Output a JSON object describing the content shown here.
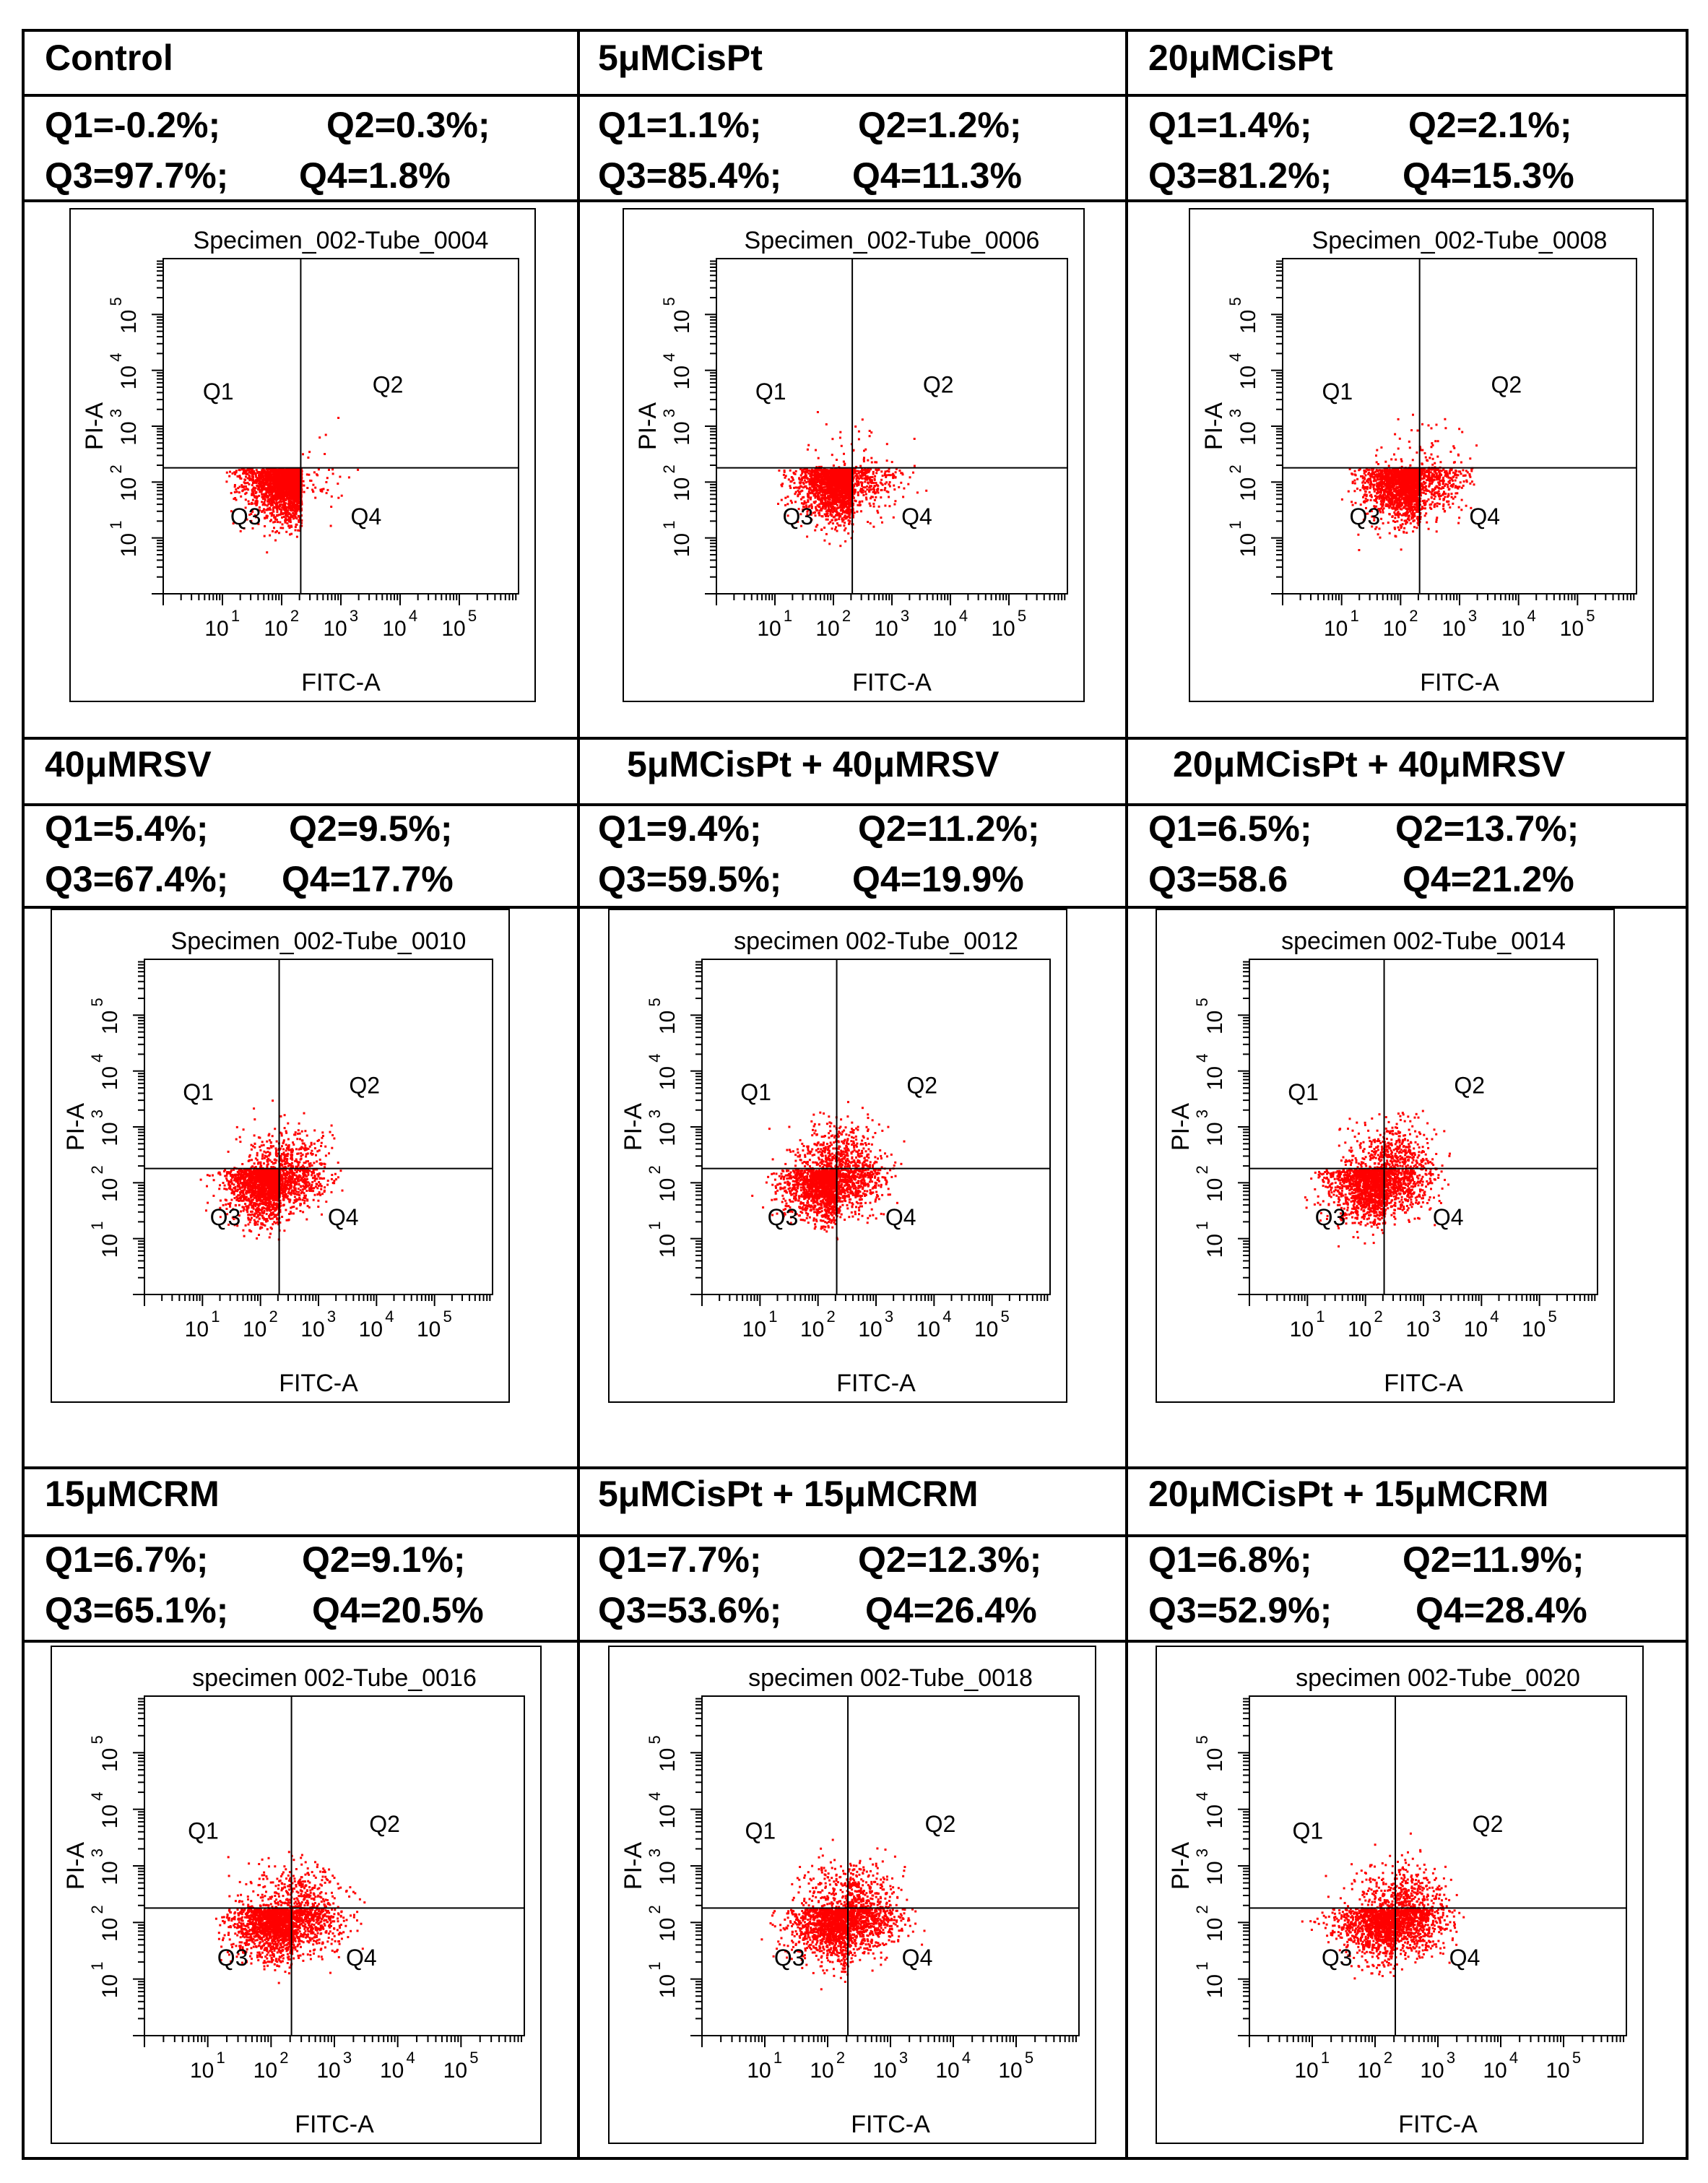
{
  "figure": {
    "point_color": "#ff0000",
    "panels": [
      {
        "label": "Control",
        "q1": "Q1=-0.2%;",
        "q2": "Q2=0.3%;",
        "q3": "Q3=97.7%;",
        "q4": "Q4=1.8%"
      },
      {
        "label": "5μMCisPt",
        "q1": "Q1=1.1%;",
        "q2": "Q2=1.2%;",
        "q3": "Q3=85.4%;",
        "q4": "Q4=11.3%"
      },
      {
        "label": "20μMCisPt",
        "q1": "Q1=1.4%;",
        "q2": "Q2=2.1%;",
        "q3": "Q3=81.2%;",
        "q4": "Q4=15.3%"
      },
      {
        "label": "40μMRSV",
        "q1": "Q1=5.4%;",
        "q2": "Q2=9.5%;",
        "q3": "Q3=67.4%;",
        "q4": "Q4=17.7%"
      },
      {
        "label": "5μMCisPt + 40μMRSV",
        "q1": "Q1=9.4%;",
        "q2": "Q2=11.2%;",
        "q3": "Q3=59.5%;",
        "q4": "Q4=19.9%"
      },
      {
        "label": "20μMCisPt + 40μMRSV",
        "q1": "Q1=6.5%;",
        "q2": "Q2=13.7%;",
        "q3": "Q3=58.6",
        "q4": "Q4=21.2%"
      },
      {
        "label": "15μMCRM",
        "q1": "Q1=6.7%;",
        "q2": "Q2=9.1%;",
        "q3": "Q3=65.1%;",
        "q4": "Q4=20.5%"
      },
      {
        "label": "5μMCisPt + 15μMCRM",
        "q1": "Q1=7.7%;",
        "q2": "Q2=12.3%;",
        "q3": "Q3=53.6%;",
        "q4": "Q4=26.4%"
      },
      {
        "label": "20μMCisPt + 15μMCRM",
        "q1": "Q1=6.8%;",
        "q2": "Q2=11.9%;",
        "q3": "Q3=52.9%;",
        "q4": "Q4=28.4%"
      }
    ]
  },
  "chart_data": [
    {
      "type": "scatter",
      "title": "Specimen_002-Tube_0004",
      "xlabel": "FITC-A",
      "ylabel": "PI-A",
      "x_scale": "log",
      "y_scale": "log",
      "xlim": [
        1,
        1000000
      ],
      "ylim": [
        1,
        1000000
      ],
      "x_ticks": [
        "10",
        "10",
        "10",
        "10",
        "10"
      ],
      "x_tick_exps": [
        "1",
        "2",
        "3",
        "4",
        "5"
      ],
      "y_ticks": [
        "10",
        "10",
        "10",
        "10",
        "10"
      ],
      "y_tick_exps": [
        "1",
        "2",
        "3",
        "4",
        "5"
      ],
      "gate": {
        "x": 210,
        "y": 180
      },
      "quadrant_labels": [
        "Q1",
        "Q2",
        "Q3",
        "Q4"
      ],
      "quadrant_percent": {
        "Q1": -0.2,
        "Q2": 0.3,
        "Q3": 97.7,
        "Q4": 1.8
      }
    },
    {
      "type": "scatter",
      "title": "Specimen_002-Tube_0006",
      "xlabel": "FITC-A",
      "ylabel": "PI-A",
      "x_scale": "log",
      "y_scale": "log",
      "xlim": [
        1,
        1000000
      ],
      "ylim": [
        1,
        1000000
      ],
      "x_ticks": [
        "10",
        "10",
        "10",
        "10",
        "10"
      ],
      "x_tick_exps": [
        "1",
        "2",
        "3",
        "4",
        "5"
      ],
      "y_ticks": [
        "10",
        "10",
        "10",
        "10",
        "10"
      ],
      "y_tick_exps": [
        "1",
        "2",
        "3",
        "4",
        "5"
      ],
      "gate": {
        "x": 210,
        "y": 180
      },
      "quadrant_labels": [
        "Q1",
        "Q2",
        "Q3",
        "Q4"
      ],
      "quadrant_percent": {
        "Q1": 1.1,
        "Q2": 1.2,
        "Q3": 85.4,
        "Q4": 11.3
      }
    },
    {
      "type": "scatter",
      "title": "Specimen_002-Tube_0008",
      "xlabel": "FITC-A",
      "ylabel": "PI-A",
      "x_scale": "log",
      "y_scale": "log",
      "xlim": [
        1,
        1000000
      ],
      "ylim": [
        1,
        1000000
      ],
      "x_ticks": [
        "10",
        "10",
        "10",
        "10",
        "10"
      ],
      "x_tick_exps": [
        "1",
        "2",
        "3",
        "4",
        "5"
      ],
      "y_ticks": [
        "10",
        "10",
        "10",
        "10",
        "10"
      ],
      "y_tick_exps": [
        "1",
        "2",
        "3",
        "4",
        "5"
      ],
      "gate": {
        "x": 210,
        "y": 180
      },
      "quadrant_labels": [
        "Q1",
        "Q2",
        "Q3",
        "Q4"
      ],
      "quadrant_percent": {
        "Q1": 1.4,
        "Q2": 2.1,
        "Q3": 81.2,
        "Q4": 15.3
      }
    },
    {
      "type": "scatter",
      "title": "Specimen_002-Tube_0010",
      "xlabel": "FITC-A",
      "ylabel": "PI-A",
      "x_scale": "log",
      "y_scale": "log",
      "xlim": [
        1,
        1000000
      ],
      "ylim": [
        1,
        1000000
      ],
      "x_ticks": [
        "10",
        "10",
        "10",
        "10",
        "10"
      ],
      "x_tick_exps": [
        "1",
        "2",
        "3",
        "4",
        "5"
      ],
      "y_ticks": [
        "10",
        "10",
        "10",
        "10",
        "10"
      ],
      "y_tick_exps": [
        "1",
        "2",
        "3",
        "4",
        "5"
      ],
      "gate": {
        "x": 210,
        "y": 180
      },
      "quadrant_labels": [
        "Q1",
        "Q2",
        "Q3",
        "Q4"
      ],
      "quadrant_percent": {
        "Q1": 5.4,
        "Q2": 9.5,
        "Q3": 67.4,
        "Q4": 17.7
      }
    },
    {
      "type": "scatter",
      "title": "specimen 002-Tube_0012",
      "xlabel": "FITC-A",
      "ylabel": "PI-A",
      "x_scale": "log",
      "y_scale": "log",
      "xlim": [
        1,
        1000000
      ],
      "ylim": [
        1,
        1000000
      ],
      "x_ticks": [
        "10",
        "10",
        "10",
        "10",
        "10"
      ],
      "x_tick_exps": [
        "1",
        "2",
        "3",
        "4",
        "5"
      ],
      "y_ticks": [
        "10",
        "10",
        "10",
        "10",
        "10"
      ],
      "y_tick_exps": [
        "1",
        "2",
        "3",
        "4",
        "5"
      ],
      "gate": {
        "x": 210,
        "y": 180
      },
      "quadrant_labels": [
        "Q1",
        "Q2",
        "Q3",
        "Q4"
      ],
      "quadrant_percent": {
        "Q1": 9.4,
        "Q2": 11.2,
        "Q3": 59.5,
        "Q4": 19.9
      }
    },
    {
      "type": "scatter",
      "title": "specimen 002-Tube_0014",
      "xlabel": "FITC-A",
      "ylabel": "PI-A",
      "x_scale": "log",
      "y_scale": "log",
      "xlim": [
        1,
        1000000
      ],
      "ylim": [
        1,
        1000000
      ],
      "x_ticks": [
        "10",
        "10",
        "10",
        "10",
        "10"
      ],
      "x_tick_exps": [
        "1",
        "2",
        "3",
        "4",
        "5"
      ],
      "y_ticks": [
        "10",
        "10",
        "10",
        "10",
        "10"
      ],
      "y_tick_exps": [
        "1",
        "2",
        "3",
        "4",
        "5"
      ],
      "gate": {
        "x": 210,
        "y": 180
      },
      "quadrant_labels": [
        "Q1",
        "Q2",
        "Q3",
        "Q4"
      ],
      "quadrant_percent": {
        "Q1": 6.5,
        "Q2": 13.7,
        "Q3": 58.6,
        "Q4": 21.2
      }
    },
    {
      "type": "scatter",
      "title": "specimen 002-Tube_0016",
      "xlabel": "FITC-A",
      "ylabel": "PI-A",
      "x_scale": "log",
      "y_scale": "log",
      "xlim": [
        1,
        1000000
      ],
      "ylim": [
        1,
        1000000
      ],
      "x_ticks": [
        "10",
        "10",
        "10",
        "10",
        "10"
      ],
      "x_tick_exps": [
        "1",
        "2",
        "3",
        "4",
        "5"
      ],
      "y_ticks": [
        "10",
        "10",
        "10",
        "10",
        "10"
      ],
      "y_tick_exps": [
        "1",
        "2",
        "3",
        "4",
        "5"
      ],
      "gate": {
        "x": 210,
        "y": 180
      },
      "quadrant_labels": [
        "Q1",
        "Q2",
        "Q3",
        "Q4"
      ],
      "quadrant_percent": {
        "Q1": 6.7,
        "Q2": 9.1,
        "Q3": 65.1,
        "Q4": 20.5
      }
    },
    {
      "type": "scatter",
      "title": "specimen 002-Tube_0018",
      "xlabel": "FITC-A",
      "ylabel": "PI-A",
      "x_scale": "log",
      "y_scale": "log",
      "xlim": [
        1,
        1000000
      ],
      "ylim": [
        1,
        1000000
      ],
      "x_ticks": [
        "10",
        "10",
        "10",
        "10",
        "10"
      ],
      "x_tick_exps": [
        "1",
        "2",
        "3",
        "4",
        "5"
      ],
      "y_ticks": [
        "10",
        "10",
        "10",
        "10",
        "10"
      ],
      "y_tick_exps": [
        "1",
        "2",
        "3",
        "4",
        "5"
      ],
      "gate": {
        "x": 210,
        "y": 180
      },
      "quadrant_labels": [
        "Q1",
        "Q2",
        "Q3",
        "Q4"
      ],
      "quadrant_percent": {
        "Q1": 7.7,
        "Q2": 12.3,
        "Q3": 53.6,
        "Q4": 26.4
      }
    },
    {
      "type": "scatter",
      "title": "specimen 002-Tube_0020",
      "xlabel": "FITC-A",
      "ylabel": "PI-A",
      "x_scale": "log",
      "y_scale": "log",
      "xlim": [
        1,
        1000000
      ],
      "ylim": [
        1,
        1000000
      ],
      "x_ticks": [
        "10",
        "10",
        "10",
        "10",
        "10"
      ],
      "x_tick_exps": [
        "1",
        "2",
        "3",
        "4",
        "5"
      ],
      "y_ticks": [
        "10",
        "10",
        "10",
        "10",
        "10"
      ],
      "y_tick_exps": [
        "1",
        "2",
        "3",
        "4",
        "5"
      ],
      "gate": {
        "x": 210,
        "y": 180
      },
      "quadrant_labels": [
        "Q1",
        "Q2",
        "Q3",
        "Q4"
      ],
      "quadrant_percent": {
        "Q1": 6.8,
        "Q2": 11.9,
        "Q3": 52.9,
        "Q4": 28.4
      }
    }
  ]
}
